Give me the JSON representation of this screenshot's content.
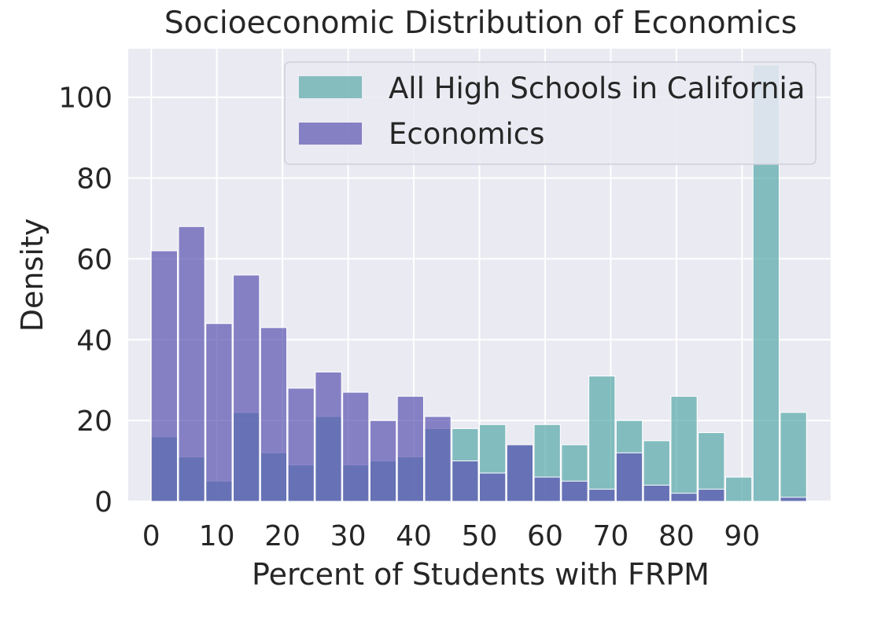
{
  "chart_data": {
    "type": "bar",
    "title": "Socioeconomic Distribution of Economics",
    "xlabel": "Percent of Students with FRPM",
    "ylabel": "Density",
    "xlim": [
      -3.5,
      103.5
    ],
    "ylim": [
      0,
      112
    ],
    "xticks": [
      "0",
      "10",
      "20",
      "30",
      "40",
      "50",
      "60",
      "70",
      "80",
      "90"
    ],
    "yticks": [
      "0",
      "20",
      "40",
      "60",
      "80",
      "100"
    ],
    "grid": true,
    "legend_position": "upper-right",
    "bin_edges": [
      0,
      4.17,
      8.33,
      12.5,
      16.67,
      20.83,
      25,
      29.17,
      33.33,
      37.5,
      41.67,
      45.83,
      50,
      54.17,
      58.33,
      62.5,
      66.67,
      70.83,
      75,
      79.17,
      83.33,
      87.5,
      91.67,
      95.83,
      100
    ],
    "series": [
      {
        "name": "All High Schools in California",
        "color": "#5aaaaa",
        "values": [
          16,
          11,
          5,
          22,
          12,
          9,
          21,
          9,
          10,
          11,
          18,
          18,
          19,
          14,
          19,
          14,
          31,
          20,
          15,
          26,
          17,
          6,
          108,
          22
        ]
      },
      {
        "name": "Economics",
        "color": "#5a53b0",
        "values": [
          62,
          68,
          44,
          56,
          43,
          28,
          32,
          27,
          20,
          26,
          21,
          10,
          7,
          14,
          6,
          5,
          3,
          12,
          4,
          2,
          3,
          0,
          0,
          1
        ]
      }
    ]
  }
}
